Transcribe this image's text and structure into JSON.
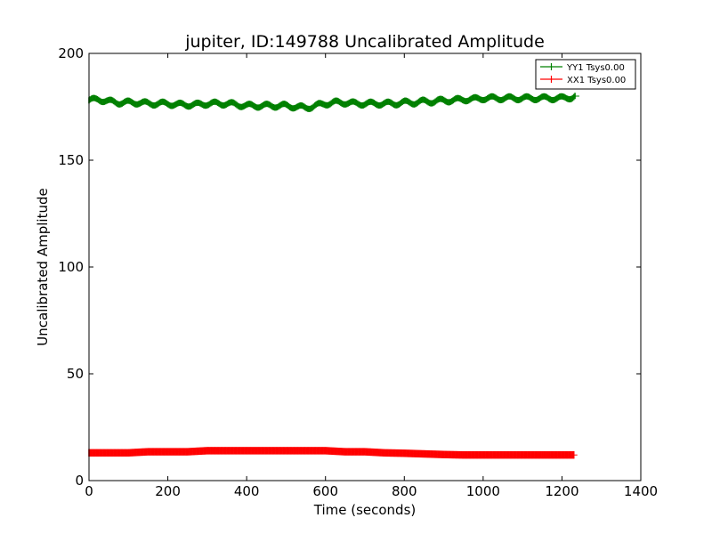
{
  "chart_data": {
    "type": "line",
    "title": "jupiter, ID:149788 Uncalibrated Amplitude",
    "xlabel": "Time (seconds)",
    "ylabel": "Uncalibrated Amplitude",
    "xlim": [
      0,
      1400
    ],
    "ylim": [
      0,
      200
    ],
    "xticks": [
      0,
      200,
      400,
      600,
      800,
      1000,
      1200,
      1400
    ],
    "yticks": [
      0,
      50,
      100,
      150,
      200
    ],
    "xtick_labels": [
      "0",
      "200",
      "400",
      "600",
      "800",
      "1000",
      "1200",
      "1400"
    ],
    "ytick_labels": [
      "0",
      "50",
      "100",
      "150",
      "200"
    ],
    "grid": false,
    "legend_position": "top-right",
    "series": [
      {
        "name": "YY1 Tsys0.00",
        "color": "#008000",
        "x": [
          0,
          25,
          50,
          75,
          100,
          125,
          150,
          175,
          200,
          225,
          250,
          275,
          300,
          325,
          350,
          375,
          400,
          425,
          450,
          475,
          500,
          525,
          550,
          575,
          600,
          625,
          650,
          675,
          700,
          725,
          750,
          775,
          800,
          825,
          850,
          875,
          900,
          925,
          950,
          975,
          1000,
          1025,
          1050,
          1075,
          1100,
          1125,
          1150,
          1175,
          1200,
          1225,
          1235
        ],
        "y": [
          178,
          178.5,
          177.5,
          177,
          177,
          177,
          176.5,
          176.5,
          176.5,
          176,
          176,
          176,
          176.5,
          176.5,
          176.5,
          176,
          175.5,
          175.5,
          175.5,
          175.5,
          175.5,
          175,
          174.5,
          175.5,
          176.5,
          177,
          177,
          176.5,
          176.5,
          176.5,
          176.5,
          176.5,
          177,
          177,
          177.5,
          177.5,
          178,
          178,
          178.5,
          178.5,
          179,
          179,
          179,
          179,
          179,
          179,
          179,
          179,
          179,
          179.5,
          180
        ]
      },
      {
        "name": "XX1 Tsys0.00",
        "color": "#ff0000",
        "x": [
          0,
          50,
          100,
          150,
          200,
          250,
          300,
          350,
          400,
          450,
          500,
          550,
          600,
          650,
          700,
          750,
          800,
          850,
          900,
          950,
          1000,
          1050,
          1100,
          1150,
          1200,
          1230
        ],
        "y": [
          13,
          13,
          13,
          13.5,
          13.5,
          13.5,
          14,
          14,
          14,
          14,
          14,
          14,
          14,
          13.5,
          13.5,
          13,
          12.8,
          12.5,
          12.2,
          12,
          12,
          12,
          12,
          12,
          12,
          12
        ]
      }
    ]
  }
}
